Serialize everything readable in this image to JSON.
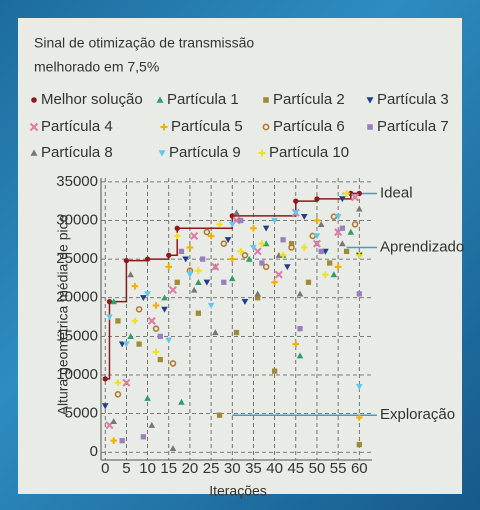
{
  "chart_data": {
    "type": "scatter",
    "title": [
      "Sinal de otimização de transmissão",
      "melhorado em 7,5%"
    ],
    "x_label": "Iterações",
    "y_label": "Altura geométrica média de pico",
    "xlim": [
      -1,
      63
    ],
    "ylim": [
      -1000,
      35500
    ],
    "xticks": [
      0,
      5,
      10,
      15,
      20,
      25,
      30,
      35,
      40,
      45,
      50,
      55,
      60
    ],
    "yticks": [
      0,
      5000,
      10000,
      15000,
      20000,
      25000,
      30000,
      35000
    ],
    "grid": true,
    "annotations": [
      {
        "text": "Ideal",
        "x": 56,
        "y": 33500
      },
      {
        "text": "Aprendizado",
        "x": 57,
        "y": 26500
      },
      {
        "text": "Exploração",
        "x": 30,
        "y": 4800
      }
    ],
    "annotation_color": "#3aa0d0",
    "series": [
      {
        "name": "Melhor solução",
        "color": "#8b1a1a",
        "marker": "circle",
        "step": true,
        "x": [
          0,
          1,
          5,
          10,
          15,
          17,
          30,
          45,
          50,
          58,
          60
        ],
        "values": [
          9500,
          19500,
          24800,
          25000,
          25500,
          29000,
          30600,
          32500,
          32800,
          33500,
          33500
        ]
      },
      {
        "name": "Partícula 1",
        "color": "#2e9e6e",
        "marker": "triangle",
        "x": [
          2,
          6,
          10,
          14,
          18,
          22,
          26,
          30,
          34,
          38,
          42,
          46,
          50,
          54,
          58
        ],
        "values": [
          19500,
          15000,
          7000,
          20000,
          6500,
          22000,
          24000,
          22500,
          25000,
          27000,
          25500,
          12500,
          27000,
          23000,
          28500
        ]
      },
      {
        "name": "Partícula 2",
        "color": "#a08a3a",
        "marker": "square",
        "x": [
          3,
          8,
          13,
          17,
          22,
          27,
          31,
          36,
          40,
          44,
          48,
          53,
          57,
          60
        ],
        "values": [
          17000,
          14000,
          12000,
          22000,
          18000,
          4800,
          15500,
          20000,
          10500,
          27000,
          22000,
          24500,
          26000,
          1000
        ]
      },
      {
        "name": "Partícula 3",
        "color": "#1f3e8c",
        "marker": "tri-down",
        "x": [
          0,
          4,
          9,
          14,
          19,
          24,
          29,
          33,
          38,
          43,
          47,
          52,
          56,
          60
        ],
        "values": [
          6000,
          14000,
          20000,
          18500,
          25000,
          22000,
          27500,
          19500,
          29000,
          24000,
          30500,
          26000,
          32800,
          25500
        ]
      },
      {
        "name": "Partícula 4",
        "color": "#e07aa8",
        "marker": "x",
        "x": [
          1,
          5,
          11,
          16,
          21,
          26,
          31,
          36,
          41,
          45,
          50,
          55,
          59
        ],
        "values": [
          3500,
          9000,
          17000,
          21000,
          28000,
          24000,
          30000,
          26000,
          23000,
          31000,
          27000,
          28500,
          33000
        ]
      },
      {
        "name": "Partícula 5",
        "color": "#f0b000",
        "marker": "plus",
        "x": [
          2,
          7,
          12,
          15,
          20,
          25,
          30,
          35,
          40,
          45,
          50,
          55,
          60
        ],
        "values": [
          1500,
          21500,
          19000,
          24000,
          26500,
          28000,
          25000,
          29000,
          22000,
          14000,
          30000,
          24000,
          4500
        ]
      },
      {
        "name": "Partícula 6",
        "color": "#b07a30",
        "marker": "ring",
        "x": [
          3,
          8,
          12,
          16,
          20,
          24,
          28,
          33,
          38,
          44,
          49,
          54,
          59
        ],
        "values": [
          7500,
          18500,
          16000,
          11500,
          23500,
          28500,
          27000,
          25500,
          24000,
          26500,
          28000,
          30500,
          29500
        ]
      },
      {
        "name": "Partícula 7",
        "color": "#9a7fc0",
        "marker": "square",
        "x": [
          4,
          9,
          13,
          18,
          23,
          28,
          32,
          37,
          42,
          46,
          51,
          56,
          60
        ],
        "values": [
          1500,
          2000,
          15000,
          26000,
          25000,
          22000,
          30000,
          24500,
          27500,
          16000,
          26000,
          29000,
          20500
        ]
      },
      {
        "name": "Partícula 8",
        "color": "#777777",
        "marker": "triangle",
        "x": [
          2,
          6,
          11,
          16,
          21,
          26,
          31,
          36,
          41,
          46,
          51,
          56,
          60
        ],
        "values": [
          4000,
          23000,
          3500,
          500,
          21000,
          15500,
          31000,
          20500,
          25500,
          20500,
          29500,
          27000,
          31500
        ]
      },
      {
        "name": "Partícula 9",
        "color": "#60c8f0",
        "marker": "tri-down",
        "x": [
          1,
          5,
          10,
          15,
          20,
          25,
          30,
          35,
          40,
          45,
          50,
          55,
          60
        ],
        "values": [
          17500,
          14000,
          20500,
          14500,
          23000,
          19000,
          29500,
          26500,
          30000,
          31000,
          28000,
          30500,
          8500
        ]
      },
      {
        "name": "Partícula 10",
        "color": "#f0e020",
        "marker": "plus",
        "x": [
          3,
          7,
          12,
          17,
          22,
          27,
          32,
          37,
          42,
          47,
          52,
          57,
          60
        ],
        "values": [
          9000,
          17000,
          13000,
          28000,
          23500,
          29500,
          26000,
          27000,
          25500,
          26500,
          23000,
          33500,
          25500
        ]
      }
    ]
  }
}
